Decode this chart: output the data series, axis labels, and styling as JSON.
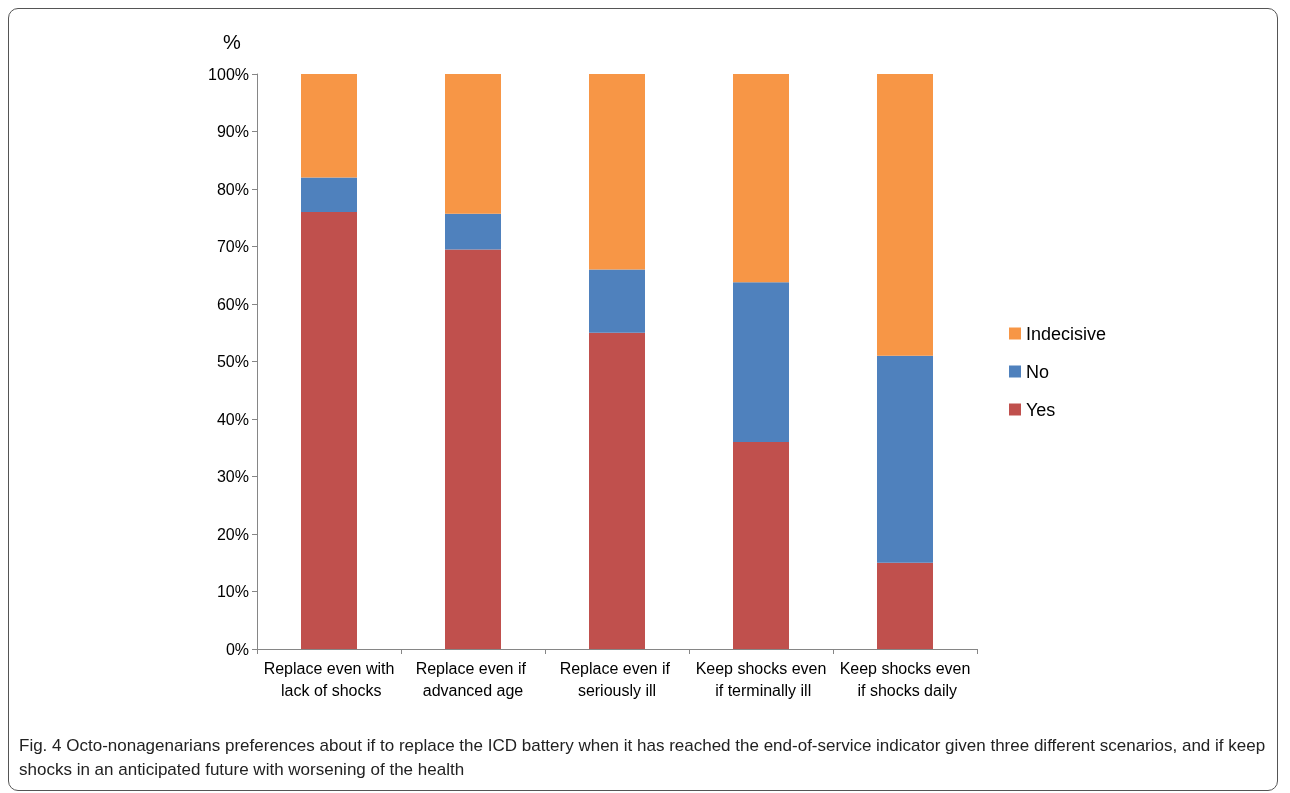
{
  "chart_data": {
    "type": "bar",
    "stacked": true,
    "ylabel": "%",
    "categories": [
      "Replace even with lack of shocks",
      "Replace even if advanced age",
      "Replace even if seriously ill",
      "Keep shocks even if terminally ill",
      "Keep shocks even if shocks daily"
    ],
    "series": [
      {
        "name": "Yes",
        "color": "#c0504d",
        "values": [
          76,
          69.5,
          55,
          36,
          15
        ]
      },
      {
        "name": "No",
        "color": "#4f81bd",
        "values": [
          6,
          6.2,
          11,
          27.8,
          36
        ]
      },
      {
        "name": "Indecisive",
        "color": "#f79646",
        "values": [
          18,
          24.3,
          34,
          36.2,
          49
        ]
      }
    ],
    "ylim": [
      0,
      100
    ],
    "yticks": [
      {
        "value": 0,
        "label": "0%"
      },
      {
        "value": 10,
        "label": "10%"
      },
      {
        "value": 20,
        "label": "20%"
      },
      {
        "value": 30,
        "label": "30%"
      },
      {
        "value": 40,
        "label": "40%"
      },
      {
        "value": 50,
        "label": "50%"
      },
      {
        "value": 60,
        "label": "60%"
      },
      {
        "value": 70,
        "label": "70%"
      },
      {
        "value": 80,
        "label": "80%"
      },
      {
        "value": 90,
        "label": "90%"
      },
      {
        "value": 100,
        "label": "100%"
      }
    ],
    "grid": false,
    "legend": "right",
    "annotations": [
      "Fig. 4 Octo-nonagenarians preferences about if to replace the ICD battery when it has reached the end-of-service indicator given three different scenarios, and if keep shocks in an anticipated future with worsening of the health"
    ]
  }
}
